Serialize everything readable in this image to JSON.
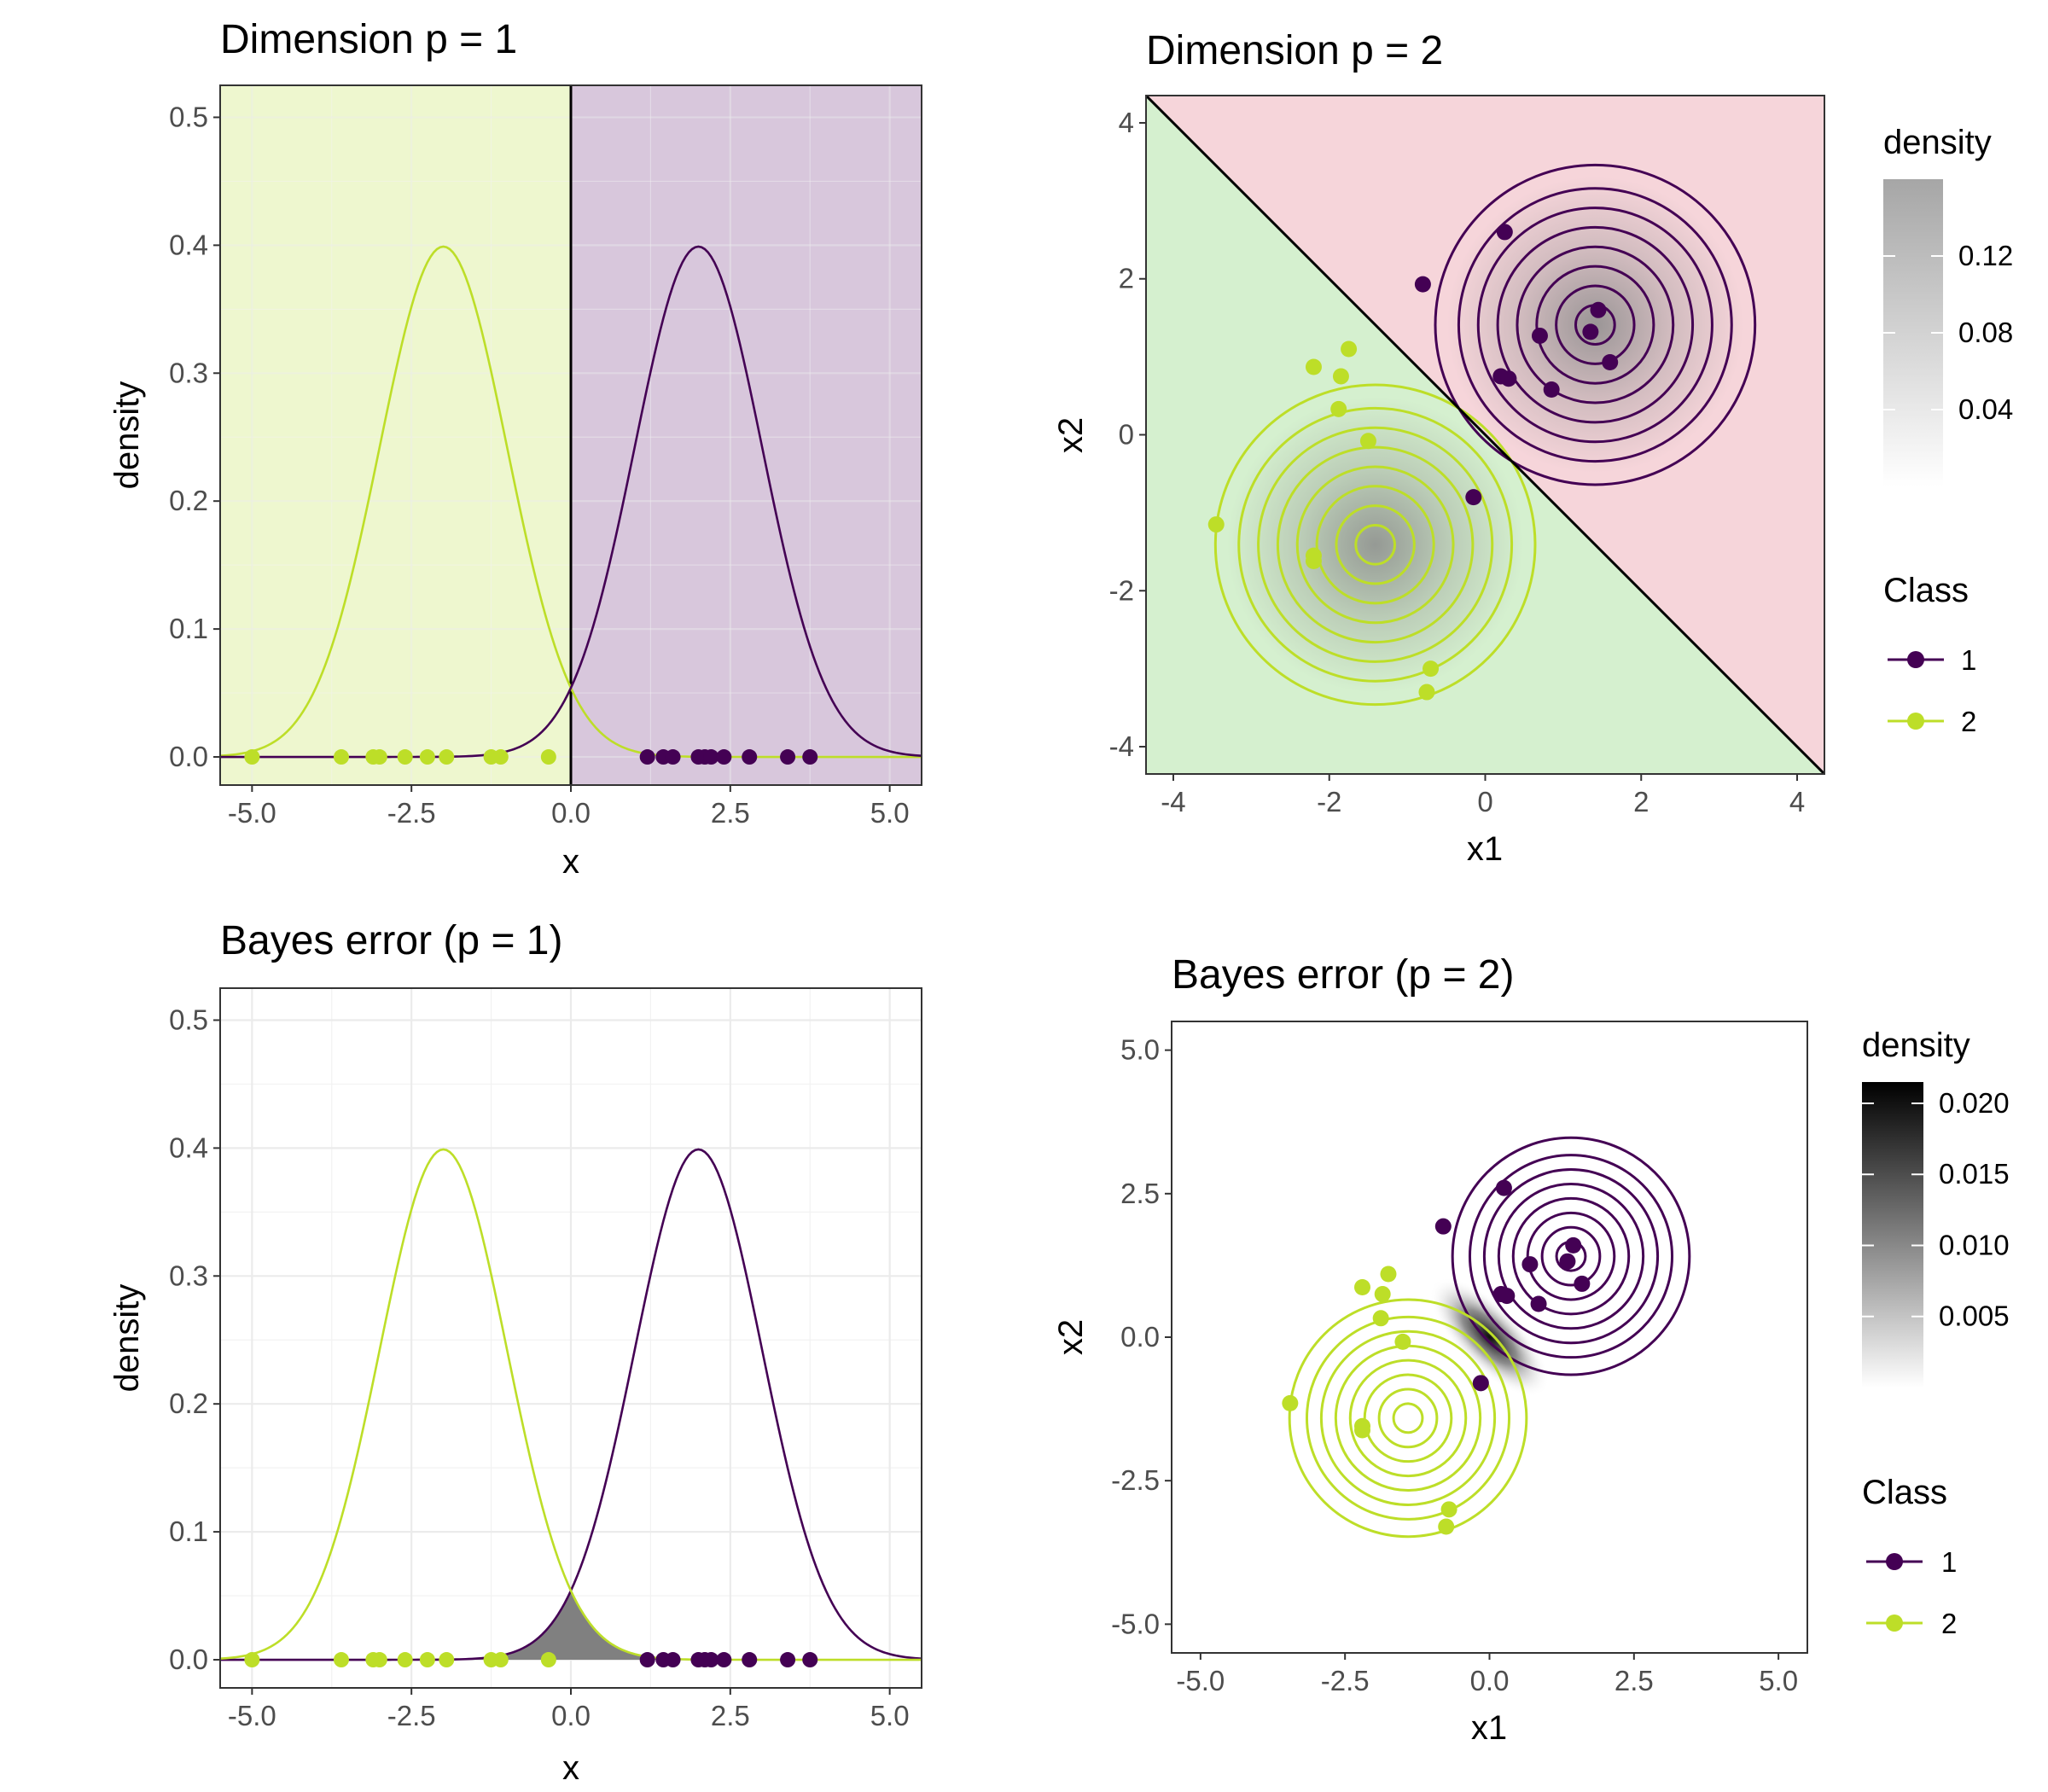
{
  "colors": {
    "class1": "#440154",
    "class2": "#BDDE28",
    "region1_p1": "#D8C7DC",
    "region2_p1": "#EEF7CF",
    "region1_p2": "#F6D5DA",
    "region2_p2": "#D5F0CF",
    "error_fill": "#808080"
  },
  "legend": {
    "class_title": "Class",
    "class_labels": [
      "1",
      "2"
    ],
    "density_title": "density"
  },
  "chart_data": [
    {
      "id": "p1",
      "type": "line",
      "title": "Dimension p = 1",
      "xlabel": "x",
      "ylabel": "density",
      "xlim": [
        -5.5,
        5.5
      ],
      "ylim": [
        -0.022,
        0.525
      ],
      "xticks": [
        -5.0,
        -2.5,
        0.0,
        2.5,
        5.0
      ],
      "xtick_labels": [
        "-5.0",
        "-2.5",
        "0.0",
        "2.5",
        "5.0"
      ],
      "yticks": [
        0.0,
        0.1,
        0.2,
        0.3,
        0.4,
        0.5
      ],
      "ytick_labels": [
        "0.0",
        "0.1",
        "0.2",
        "0.3",
        "0.4",
        "0.5"
      ],
      "decision_boundary": 0.0,
      "series": [
        {
          "class": "1",
          "distribution": "normal",
          "mean": 2,
          "sd": 1
        },
        {
          "class": "2",
          "distribution": "normal",
          "mean": -2,
          "sd": 1
        }
      ],
      "points_class1": [
        1.2,
        1.45,
        1.6,
        2.0,
        2.1,
        2.2,
        2.4,
        2.8,
        3.4,
        3.75
      ],
      "points_class2": [
        -5.0,
        -3.6,
        -3.1,
        -3.0,
        -2.6,
        -2.25,
        -1.95,
        -1.25,
        -1.1,
        -0.35
      ]
    },
    {
      "id": "p2",
      "type": "scatter",
      "title": "Dimension p = 2",
      "xlabel": "x1",
      "ylabel": "x2",
      "xlim": [
        -4.35,
        4.35
      ],
      "ylim": [
        -4.35,
        4.35
      ],
      "xticks": [
        -4,
        -2,
        0,
        2,
        4
      ],
      "xtick_labels": [
        "-4",
        "-2",
        "0",
        "2",
        "4"
      ],
      "yticks": [
        -4,
        -2,
        0,
        2,
        4
      ],
      "ytick_labels": [
        "-4",
        "-2",
        "0",
        "2",
        "4"
      ],
      "decision_boundary": "x1 + x2 = 0",
      "centers": {
        "class1": [
          1.41,
          1.41
        ],
        "class2": [
          -1.41,
          -1.41
        ]
      },
      "contour_radii": [
        0.25,
        0.5,
        0.75,
        1.0,
        1.25,
        1.5,
        1.75,
        2.05
      ],
      "points_class1": [
        [
          0.25,
          2.6
        ],
        [
          -0.8,
          1.93
        ],
        [
          1.45,
          1.6
        ],
        [
          0.7,
          1.27
        ],
        [
          1.35,
          1.32
        ],
        [
          1.6,
          0.93
        ],
        [
          0.2,
          0.75
        ],
        [
          0.3,
          0.72
        ],
        [
          0.85,
          0.58
        ],
        [
          -0.15,
          -0.8
        ]
      ],
      "points_class2": [
        [
          -2.2,
          0.87
        ],
        [
          -1.75,
          1.1
        ],
        [
          -1.85,
          0.75
        ],
        [
          -1.88,
          0.33
        ],
        [
          -1.5,
          -0.08
        ],
        [
          -3.45,
          -1.15
        ],
        [
          -2.2,
          -1.55
        ],
        [
          -2.2,
          -1.62
        ],
        [
          -0.7,
          -3.0
        ],
        [
          -0.75,
          -3.3
        ]
      ],
      "density_legend": {
        "ticks": [
          0.04,
          0.08,
          0.12
        ],
        "tick_labels": [
          "0.04",
          "0.08",
          "0.12"
        ],
        "max": 0.16
      }
    },
    {
      "id": "p3",
      "type": "area",
      "title": "Bayes error (p = 1)",
      "xlabel": "x",
      "ylabel": "density",
      "xlim": [
        -5.5,
        5.5
      ],
      "ylim": [
        -0.022,
        0.525
      ],
      "xticks": [
        -5.0,
        -2.5,
        0.0,
        2.5,
        5.0
      ],
      "xtick_labels": [
        "-5.0",
        "-2.5",
        "0.0",
        "2.5",
        "5.0"
      ],
      "yticks": [
        0.0,
        0.1,
        0.2,
        0.3,
        0.4,
        0.5
      ],
      "ytick_labels": [
        "0.0",
        "0.1",
        "0.2",
        "0.3",
        "0.4",
        "0.5"
      ],
      "series": [
        {
          "class": "1",
          "distribution": "normal",
          "mean": 2,
          "sd": 1
        },
        {
          "class": "2",
          "distribution": "normal",
          "mean": -2,
          "sd": 1
        }
      ],
      "error_area": "min(f1, f2)",
      "points_class1": [
        1.2,
        1.45,
        1.6,
        2.0,
        2.1,
        2.2,
        2.4,
        2.8,
        3.4,
        3.75
      ],
      "points_class2": [
        -5.0,
        -3.6,
        -3.1,
        -3.0,
        -2.6,
        -2.25,
        -1.95,
        -1.25,
        -1.1,
        -0.35
      ]
    },
    {
      "id": "p4",
      "type": "heatmap",
      "title": "Bayes error (p = 2)",
      "xlabel": "x1",
      "ylabel": "x2",
      "xlim": [
        -5.5,
        5.5
      ],
      "ylim": [
        -5.5,
        5.5
      ],
      "xticks": [
        -5.0,
        -2.5,
        0.0,
        2.5,
        5.0
      ],
      "xtick_labels": [
        "-5.0",
        "-2.5",
        "0.0",
        "2.5",
        "5.0"
      ],
      "yticks": [
        -5.0,
        -2.5,
        0.0,
        2.5,
        5.0
      ],
      "ytick_labels": [
        "-5.0",
        "-2.5",
        "0.0",
        "2.5",
        "5.0"
      ],
      "centers": {
        "class1": [
          1.41,
          1.41
        ],
        "class2": [
          -1.41,
          -1.41
        ]
      },
      "contour_radii": [
        0.25,
        0.5,
        0.75,
        1.0,
        1.25,
        1.5,
        1.75,
        2.05
      ],
      "points_class1": [
        [
          0.25,
          2.6
        ],
        [
          -0.8,
          1.93
        ],
        [
          1.45,
          1.6
        ],
        [
          0.7,
          1.27
        ],
        [
          1.35,
          1.32
        ],
        [
          1.6,
          0.93
        ],
        [
          0.2,
          0.75
        ],
        [
          0.3,
          0.72
        ],
        [
          0.85,
          0.58
        ],
        [
          -0.15,
          -0.8
        ]
      ],
      "points_class2": [
        [
          -2.2,
          0.87
        ],
        [
          -1.75,
          1.1
        ],
        [
          -1.85,
          0.75
        ],
        [
          -1.88,
          0.33
        ],
        [
          -1.5,
          -0.08
        ],
        [
          -3.45,
          -1.15
        ],
        [
          -2.2,
          -1.55
        ],
        [
          -2.2,
          -1.62
        ],
        [
          -0.7,
          -3.0
        ],
        [
          -0.75,
          -3.3
        ]
      ],
      "density_legend": {
        "ticks": [
          0.005,
          0.01,
          0.015,
          0.02
        ],
        "tick_labels": [
          "0.005",
          "0.010",
          "0.015",
          "0.020"
        ],
        "max": 0.0215
      }
    }
  ]
}
